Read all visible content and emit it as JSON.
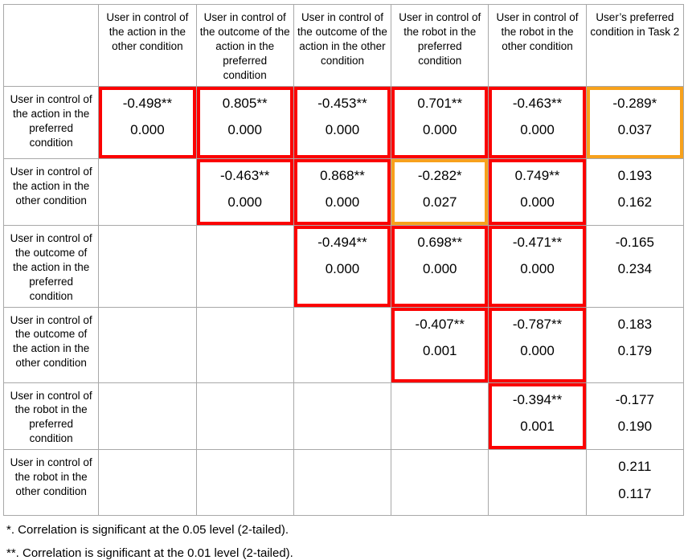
{
  "colors": {
    "red": "#fb0202",
    "orange": "#f7a11c",
    "grid": "#a8a8a8",
    "text": "#000000"
  },
  "table": {
    "columns": [
      "User in control of the action in the other condition",
      "User in control of the outcome of the action in the preferred condition",
      "User in control of the outcome of the action in the other condition",
      "User in control of the robot in the preferred condition",
      "User in control of the robot in the other condition",
      "User’s preferred condition in Task 2"
    ],
    "rows": [
      {
        "label": "User in control of the action in the preferred condition",
        "cells": [
          {
            "r": "-0.498**",
            "p": "0.000",
            "hl": "red"
          },
          {
            "r": "0.805**",
            "p": "0.000",
            "hl": "red"
          },
          {
            "r": "-0.453**",
            "p": "0.000",
            "hl": "red"
          },
          {
            "r": "0.701**",
            "p": "0.000",
            "hl": "red"
          },
          {
            "r": "-0.463**",
            "p": "0.000",
            "hl": "red"
          },
          {
            "r": "-0.289*",
            "p": "0.037",
            "hl": "orange"
          }
        ]
      },
      {
        "label": "User in control of the action in the other condition",
        "cells": [
          {
            "r": "",
            "p": "",
            "hl": ""
          },
          {
            "r": "-0.463**",
            "p": "0.000",
            "hl": "red"
          },
          {
            "r": "0.868**",
            "p": "0.000",
            "hl": "red"
          },
          {
            "r": "-0.282*",
            "p": "0.027",
            "hl": "orange"
          },
          {
            "r": "0.749**",
            "p": "0.000",
            "hl": "red"
          },
          {
            "r": "0.193",
            "p": "0.162",
            "hl": ""
          }
        ]
      },
      {
        "label": "User in control of the outcome of the action in the preferred condition",
        "cells": [
          {
            "r": "",
            "p": "",
            "hl": ""
          },
          {
            "r": "",
            "p": "",
            "hl": ""
          },
          {
            "r": "-0.494**",
            "p": "0.000",
            "hl": "red"
          },
          {
            "r": "0.698**",
            "p": "0.000",
            "hl": "red"
          },
          {
            "r": "-0.471**",
            "p": "0.000",
            "hl": "red"
          },
          {
            "r": "-0.165",
            "p": "0.234",
            "hl": ""
          }
        ]
      },
      {
        "label": "User in control of the outcome of the action in the other condition",
        "cells": [
          {
            "r": "",
            "p": "",
            "hl": ""
          },
          {
            "r": "",
            "p": "",
            "hl": ""
          },
          {
            "r": "",
            "p": "",
            "hl": ""
          },
          {
            "r": "-0.407**",
            "p": "0.001",
            "hl": "red"
          },
          {
            "r": "-0.787**",
            "p": "0.000",
            "hl": "red"
          },
          {
            "r": "0.183",
            "p": "0.179",
            "hl": ""
          }
        ]
      },
      {
        "label": "User in control of the robot in the preferred condition",
        "cells": [
          {
            "r": "",
            "p": "",
            "hl": ""
          },
          {
            "r": "",
            "p": "",
            "hl": ""
          },
          {
            "r": "",
            "p": "",
            "hl": ""
          },
          {
            "r": "",
            "p": "",
            "hl": ""
          },
          {
            "r": "-0.394**",
            "p": "0.001",
            "hl": "red"
          },
          {
            "r": "-0.177",
            "p": "0.190",
            "hl": ""
          }
        ]
      },
      {
        "label": "User in control of the robot in the other condition",
        "cells": [
          {
            "r": "",
            "p": "",
            "hl": ""
          },
          {
            "r": "",
            "p": "",
            "hl": ""
          },
          {
            "r": "",
            "p": "",
            "hl": ""
          },
          {
            "r": "",
            "p": "",
            "hl": ""
          },
          {
            "r": "",
            "p": "",
            "hl": ""
          },
          {
            "r": "0.211",
            "p": "0.117",
            "hl": ""
          }
        ]
      }
    ]
  },
  "footnotes": [
    "*. Correlation is significant at the 0.05 level (2-tailed).",
    "**. Correlation is significant at the 0.01 level (2-tailed)."
  ]
}
